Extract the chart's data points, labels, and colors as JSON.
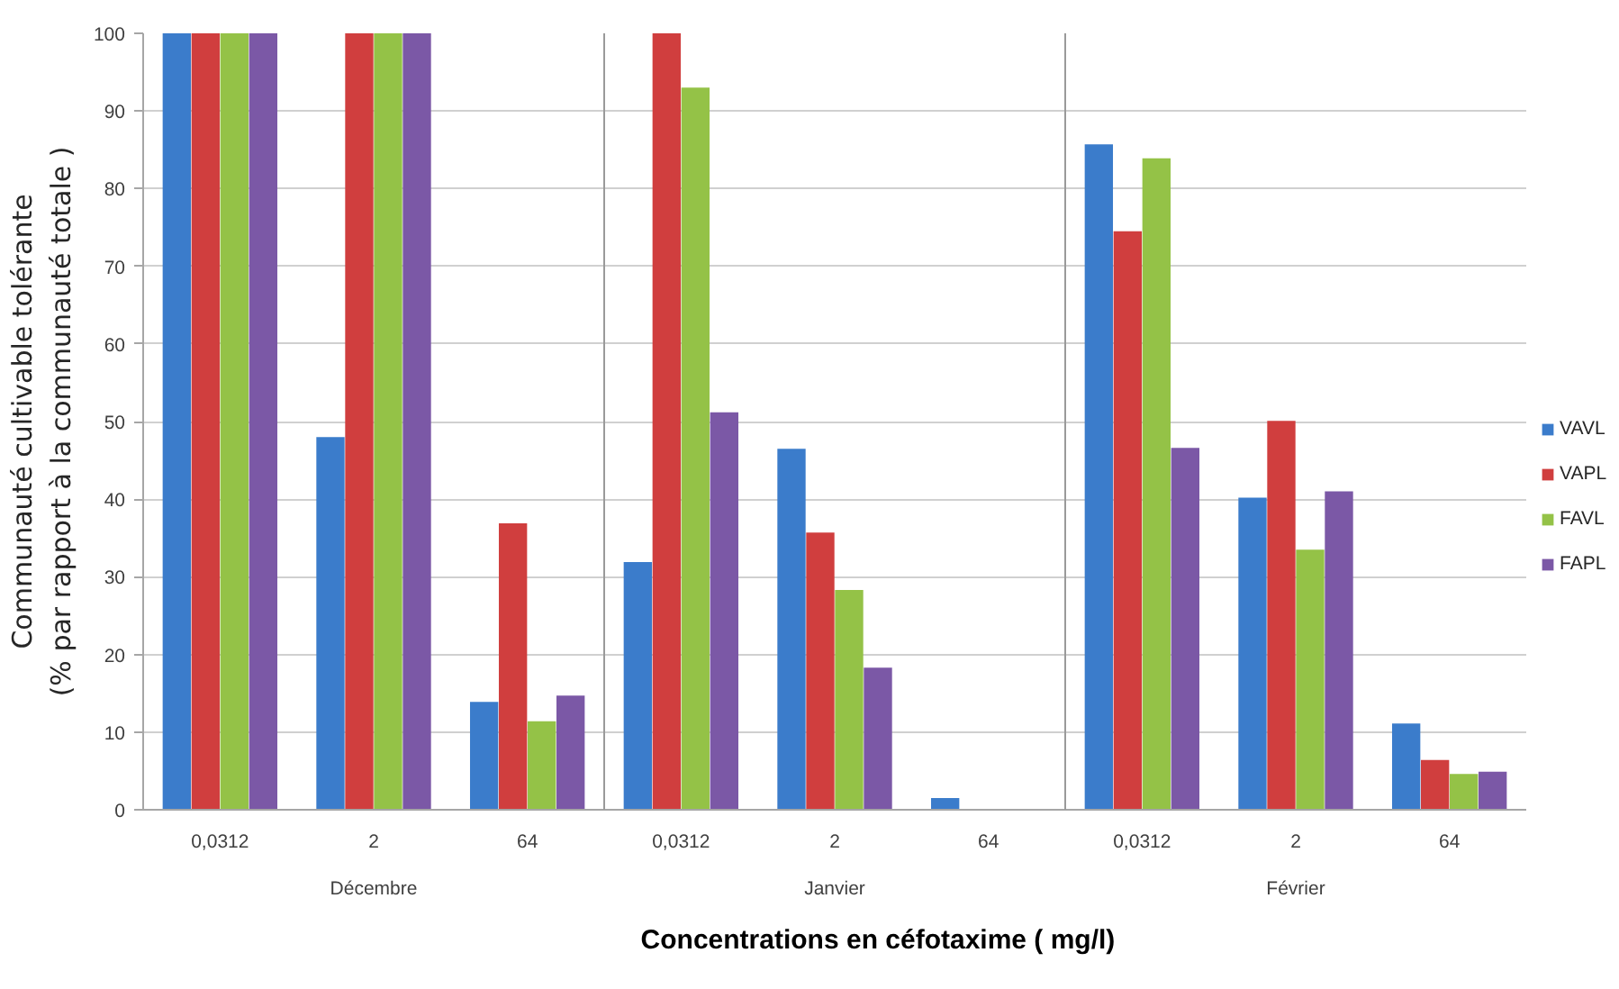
{
  "chart_data": {
    "type": "bar",
    "categories": [
      "0,0312",
      "2",
      "64",
      "0,0312",
      "2",
      "64",
      "0,0312",
      "2",
      "64"
    ],
    "series": [
      {
        "name": "VAVL",
        "color": "#3b7ccb",
        "values": [
          100,
          48,
          13.9,
          31.9,
          46.5,
          1.5,
          85.7,
          40.2,
          11.1
        ]
      },
      {
        "name": "VAPL",
        "color": "#d03e3e",
        "values": [
          100,
          100,
          36.9,
          100,
          35.7,
          0,
          74.5,
          50.1,
          6.4
        ]
      },
      {
        "name": "FAVL",
        "color": "#94c247",
        "values": [
          100,
          100,
          11.4,
          93,
          28.3,
          0,
          83.9,
          33.5,
          4.6
        ]
      },
      {
        "name": "FAPL",
        "color": "#7b58a6",
        "values": [
          100,
          100,
          14.7,
          51.2,
          18.3,
          0,
          46.6,
          41,
          4.9
        ]
      }
    ],
    "xlabel": "Concentrations en céfotaxime ( mg/l)",
    "ylabel": "Communauté cultivable tolérante\n(% par rapport à la communauté totale )",
    "annotations": [
      "Décembre",
      "Janvier",
      "Février"
    ],
    "ylim": [
      0,
      100
    ],
    "yticks": [
      0,
      10,
      20,
      30,
      40,
      50,
      60,
      70,
      80,
      90,
      100
    ],
    "grid": "y",
    "legend": "right"
  }
}
